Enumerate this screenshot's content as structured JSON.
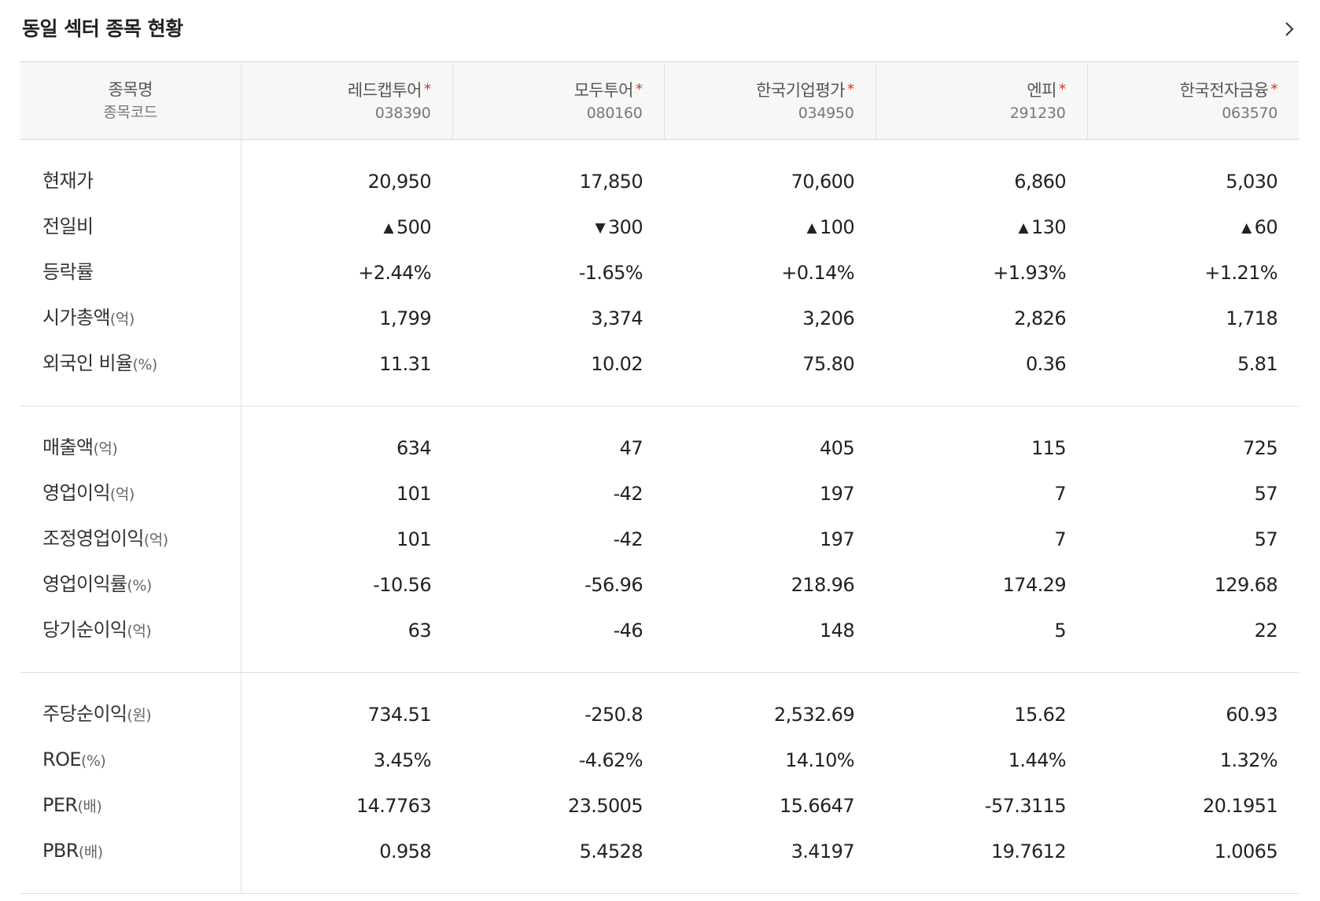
{
  "title": "동일 섹터 종목 현황",
  "more_icon": "chevron-right-icon",
  "header": {
    "label_name": "종목명",
    "label_code": "종목코드",
    "star": "*",
    "stocks": [
      {
        "name": "레드캡투어",
        "code": "038390"
      },
      {
        "name": "모두투어",
        "code": "080160"
      },
      {
        "name": "한국기업평가",
        "code": "034950"
      },
      {
        "name": "엔피",
        "code": "291230"
      },
      {
        "name": "한국전자금융",
        "code": "063570"
      }
    ]
  },
  "colors": {
    "up": "#e22b2b",
    "down": "#2a5bd7",
    "star": "#e0301e"
  },
  "rows": {
    "price": {
      "label": "현재가",
      "unit": "",
      "values": [
        "20,950",
        "17,850",
        "70,600",
        "6,860",
        "5,030"
      ]
    },
    "change": {
      "label": "전일비",
      "unit": "",
      "values": [
        "500",
        "300",
        "100",
        "130",
        "60"
      ],
      "arrows": [
        "▲",
        "▼",
        "▲",
        "▲",
        "▲"
      ],
      "directions": [
        "up",
        "down",
        "up",
        "up",
        "up"
      ]
    },
    "rate": {
      "label": "등락률",
      "unit": "",
      "values": [
        "+2.44%",
        "-1.65%",
        "+0.14%",
        "+1.93%",
        "+1.21%"
      ],
      "directions": [
        "up",
        "down",
        "up",
        "up",
        "up"
      ]
    },
    "market_cap": {
      "label": "시가총액",
      "unit": "(억)",
      "values": [
        "1,799",
        "3,374",
        "3,206",
        "2,826",
        "1,718"
      ]
    },
    "foreign_ratio": {
      "label": "외국인 비율",
      "unit": "(%)",
      "values": [
        "11.31",
        "10.02",
        "75.80",
        "0.36",
        "5.81"
      ]
    },
    "sales": {
      "label": "매출액",
      "unit": "(억)",
      "values": [
        "634",
        "47",
        "405",
        "115",
        "725"
      ]
    },
    "op_profit": {
      "label": "영업이익",
      "unit": "(억)",
      "values": [
        "101",
        "-42",
        "197",
        "7",
        "57"
      ]
    },
    "adj_op_profit": {
      "label": "조정영업이익",
      "unit": "(억)",
      "values": [
        "101",
        "-42",
        "197",
        "7",
        "57"
      ]
    },
    "op_margin": {
      "label": "영업이익률",
      "unit": "(%)",
      "values": [
        "-10.56",
        "-56.96",
        "218.96",
        "174.29",
        "129.68"
      ]
    },
    "net_income": {
      "label": "당기순이익",
      "unit": "(억)",
      "values": [
        "63",
        "-46",
        "148",
        "5",
        "22"
      ]
    },
    "eps": {
      "label": "주당순이익",
      "unit": "(원)",
      "values": [
        "734.51",
        "-250.8",
        "2,532.69",
        "15.62",
        "60.93"
      ]
    },
    "roe": {
      "label": "ROE",
      "unit": "(%)",
      "values": [
        "3.45%",
        "-4.62%",
        "14.10%",
        "1.44%",
        "1.32%"
      ]
    },
    "per": {
      "label": "PER",
      "unit": "(배)",
      "values": [
        "14.7763",
        "23.5005",
        "15.6647",
        "-57.3115",
        "20.1951"
      ]
    },
    "pbr": {
      "label": "PBR",
      "unit": "(배)",
      "values": [
        "0.958",
        "5.4528",
        "3.4197",
        "19.7612",
        "1.0065"
      ]
    }
  }
}
